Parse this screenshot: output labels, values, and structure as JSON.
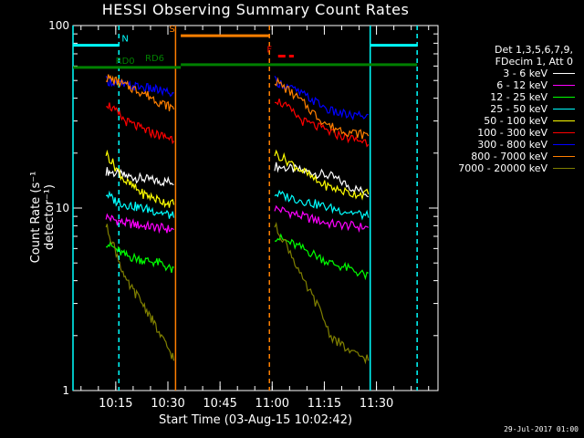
{
  "chart_data": {
    "type": "line",
    "title": "HESSI Observing Summary Count Rates",
    "xlabel": "Start Time (03-Aug-15 10:02:42)",
    "ylabel": "Count Rate (s⁻¹ detector⁻¹)",
    "x_ticks": [
      "10:15",
      "10:30",
      "10:45",
      "11:00",
      "11:15",
      "11:30"
    ],
    "x_tick_minutes": [
      12.3,
      27.3,
      42.3,
      57.3,
      72.3,
      87.3
    ],
    "y_ticks": [
      "1",
      "10",
      "100"
    ],
    "y_scale": "log",
    "ylim": [
      1,
      100
    ],
    "xlim_minutes": [
      0,
      105
    ],
    "legend_header": [
      "Det 1,3,5,6,7,9,",
      "FDecim 1, Att 0"
    ],
    "series": [
      {
        "name": "3 - 6 keV",
        "color": "#ffffff",
        "seg1": [
          16,
          15.5,
          15,
          14.5,
          14,
          14
        ],
        "seg2": [
          17,
          16.5,
          16,
          15.5,
          15,
          13,
          12
        ]
      },
      {
        "name": "6 - 12 keV",
        "color": "#ff00ff",
        "seg1": [
          9,
          8.6,
          8.3,
          8,
          7.8,
          7.6
        ],
        "seg2": [
          10,
          9.5,
          9,
          8.6,
          8.2,
          8,
          7.8
        ]
      },
      {
        "name": "12 - 25 keV",
        "color": "#00ff00",
        "seg1": [
          6.5,
          6,
          5.5,
          5.2,
          5,
          4.5
        ],
        "seg2": [
          7,
          6.5,
          6,
          5.5,
          5,
          4.6,
          4.2
        ]
      },
      {
        "name": "25 - 50 keV",
        "color": "#00ffff",
        "seg1": [
          12,
          11,
          10.5,
          10,
          9.5,
          9
        ],
        "seg2": [
          12,
          11.5,
          11,
          10.5,
          10,
          9.5,
          9
        ]
      },
      {
        "name": "50 - 100 keV",
        "color": "#ffff00",
        "seg1": [
          20,
          17,
          14,
          12,
          11,
          10.5
        ],
        "seg2": [
          20,
          18,
          16,
          14,
          13,
          12,
          12
        ]
      },
      {
        "name": "100 - 300 keV",
        "color": "#ff0000",
        "seg1": [
          38,
          34,
          30,
          27,
          25,
          24
        ],
        "seg2": [
          40,
          35,
          30,
          28,
          26,
          24,
          23
        ]
      },
      {
        "name": "300 - 800 keV",
        "color": "#0000ff",
        "seg1": [
          50,
          49,
          47,
          46,
          44,
          42
        ],
        "seg2": [
          50,
          46,
          42,
          38,
          34,
          32,
          32
        ]
      },
      {
        "name": "800 - 7000 keV",
        "color": "#ff7f00",
        "seg1": [
          52,
          50,
          47,
          43,
          38,
          35
        ],
        "seg2": [
          50,
          44,
          38,
          32,
          28,
          26,
          25
        ]
      },
      {
        "name": "7000 - 20000 keV",
        "color": "#808000",
        "seg1": [
          8,
          6,
          4,
          3,
          2,
          1.5
        ],
        "seg2": [
          8,
          6,
          4,
          3,
          2,
          1.6,
          1.5
        ]
      }
    ],
    "seg1_minutes": [
      9.5,
      12,
      15,
      20,
      25,
      29
    ],
    "seg2_minutes": [
      58,
      62,
      66,
      70,
      74,
      80,
      85
    ],
    "flag_bars": [
      {
        "label": "N",
        "color": "#00ffff",
        "start_min": 0,
        "end_min": 13,
        "level": 78,
        "label_min": 15
      },
      {
        "label": "",
        "color": "#00ffff",
        "start_min": 85.5,
        "end_min": 99,
        "level": 78
      },
      {
        "label": "S",
        "color": "#ff7f00",
        "start_min": 31,
        "end_min": 56.5,
        "level": 88,
        "label_min": 28.5
      },
      {
        "label": "F",
        "color": "#ff0000",
        "start_min": 59,
        "end_min": 63.5,
        "level": 68,
        "label_min": 56.5
      },
      {
        "label": "RD0",
        "color": "#008000",
        "start_min": 0,
        "end_min": 31,
        "level": 59,
        "label_min": 15
      },
      {
        "label": "RD6",
        "color": "#008000",
        "start_min": 31,
        "end_min": 99,
        "level": 61,
        "label_min": 23.5
      }
    ],
    "vlines": [
      {
        "min": 0,
        "color": "#00ffff",
        "dashed": false
      },
      {
        "min": 13.2,
        "color": "#00ffff",
        "dashed": true
      },
      {
        "min": 29.5,
        "color": "#ff7f00",
        "dashed": false
      },
      {
        "min": 56.5,
        "color": "#ff7f00",
        "dashed": true
      },
      {
        "min": 85.5,
        "color": "#00ffff",
        "dashed": false
      },
      {
        "min": 99,
        "color": "#00ffff",
        "dashed": true
      }
    ],
    "footer_stamp": "29-Jul-2017 01:00"
  }
}
